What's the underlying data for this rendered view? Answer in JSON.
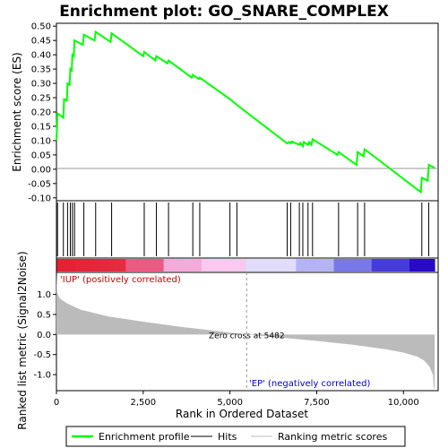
{
  "chart_data": {
    "type": "line",
    "title": "Enrichment plot: GO_SNARE_COMPLEX",
    "xlabel": "Rank in Ordered Dataset",
    "ylabel_top": "Enrichment score (ES)",
    "ylabel_bottom": "Ranked list metric (Signal2Noise)",
    "x_range": [
      0,
      11000
    ],
    "es_ylim": [
      -0.11,
      0.51
    ],
    "metric_ylim": [
      -1.4,
      1.55
    ],
    "x_ticks": [
      0,
      2500,
      5000,
      7500,
      10000
    ],
    "x_tick_labels": [
      "0",
      "2,500",
      "5,000",
      "7,500",
      "10,000"
    ],
    "es_ticks": [
      0.5,
      0.45,
      0.4,
      0.35,
      0.3,
      0.25,
      0.2,
      0.15,
      0.1,
      0.05,
      0.0,
      -0.05,
      -0.1
    ],
    "es_tick_labels": [
      "0.50",
      "0.45",
      "0.40",
      "0.35",
      "0.30",
      "0.25",
      "0.20",
      "0.15",
      "0.10",
      "0.05",
      "0.00",
      "-0.05",
      "-0.10"
    ],
    "metric_ticks": [
      1.0,
      0.5,
      0.0,
      -0.5,
      -1.0
    ],
    "metric_tick_labels": [
      "1.0",
      "0.5",
      "0.0",
      "-0.5",
      "-1.0"
    ],
    "series": [
      {
        "name": "Enrichment profile",
        "color": "#00ff00",
        "points": [
          [
            0,
            0.1
          ],
          [
            30,
            0.195
          ],
          [
            200,
            0.18
          ],
          [
            220,
            0.245
          ],
          [
            300,
            0.24
          ],
          [
            320,
            0.3
          ],
          [
            380,
            0.295
          ],
          [
            400,
            0.35
          ],
          [
            440,
            0.345
          ],
          [
            460,
            0.4
          ],
          [
            500,
            0.395
          ],
          [
            520,
            0.45
          ],
          [
            760,
            0.435
          ],
          [
            790,
            0.47
          ],
          [
            1100,
            0.45
          ],
          [
            1130,
            0.48
          ],
          [
            1560,
            0.445
          ],
          [
            1590,
            0.475
          ],
          [
            2500,
            0.395
          ],
          [
            2530,
            0.41
          ],
          [
            2850,
            0.38
          ],
          [
            2880,
            0.395
          ],
          [
            3200,
            0.37
          ],
          [
            3230,
            0.38
          ],
          [
            3900,
            0.32
          ],
          [
            3930,
            0.33
          ],
          [
            4100,
            0.315
          ],
          [
            4130,
            0.32
          ],
          [
            5000,
            0.245
          ],
          [
            5200,
            0.225
          ],
          [
            6650,
            0.09
          ],
          [
            6700,
            0.095
          ],
          [
            6750,
            0.09
          ],
          [
            6780,
            0.097
          ],
          [
            7000,
            0.085
          ],
          [
            7030,
            0.092
          ],
          [
            7100,
            0.08
          ],
          [
            7130,
            0.095
          ],
          [
            7250,
            0.085
          ],
          [
            7280,
            0.095
          ],
          [
            7350,
            0.085
          ],
          [
            7380,
            0.105
          ],
          [
            8100,
            0.05
          ],
          [
            8130,
            0.06
          ],
          [
            8650,
            0.015
          ],
          [
            8680,
            0.06
          ],
          [
            8850,
            0.045
          ],
          [
            8880,
            0.07
          ],
          [
            10500,
            -0.08
          ],
          [
            10530,
            -0.03
          ],
          [
            10700,
            -0.04
          ],
          [
            10730,
            0.015
          ],
          [
            10900,
            0.005
          ]
        ]
      }
    ],
    "hits": [
      30,
      200,
      320,
      400,
      460,
      520,
      790,
      1130,
      1590,
      2530,
      2880,
      3230,
      3930,
      4130,
      5000,
      5200,
      6650,
      6750,
      7000,
      7100,
      7250,
      7380,
      8130,
      8680,
      8880,
      10530,
      10730
    ],
    "zero_cross": 5482,
    "zero_cross_label": "Zero cross at 5482",
    "positive_label": "'IUP' (positively correlated)",
    "negative_label": "'EP' (negatively correlated)",
    "metric_curve": [
      [
        0,
        1.5
      ],
      [
        20,
        1.05
      ],
      [
        100,
        0.9
      ],
      [
        300,
        0.78
      ],
      [
        700,
        0.62
      ],
      [
        1500,
        0.45
      ],
      [
        2500,
        0.32
      ],
      [
        3500,
        0.2
      ],
      [
        4500,
        0.1
      ],
      [
        5482,
        0.0
      ],
      [
        6500,
        -0.08
      ],
      [
        7500,
        -0.16
      ],
      [
        8500,
        -0.25
      ],
      [
        9500,
        -0.37
      ],
      [
        10000,
        -0.45
      ],
      [
        10400,
        -0.55
      ],
      [
        10600,
        -0.65
      ],
      [
        10750,
        -0.8
      ],
      [
        10850,
        -1.0
      ],
      [
        10880,
        -1.35
      ],
      [
        10900,
        -1.35
      ]
    ],
    "legend": {
      "items": [
        {
          "label": "Enrichment profile",
          "color": "#00ff00"
        },
        {
          "label": "Hits",
          "color": "#000000"
        },
        {
          "label": "Ranking metric scores",
          "color": "#bbbbbb"
        }
      ]
    }
  }
}
